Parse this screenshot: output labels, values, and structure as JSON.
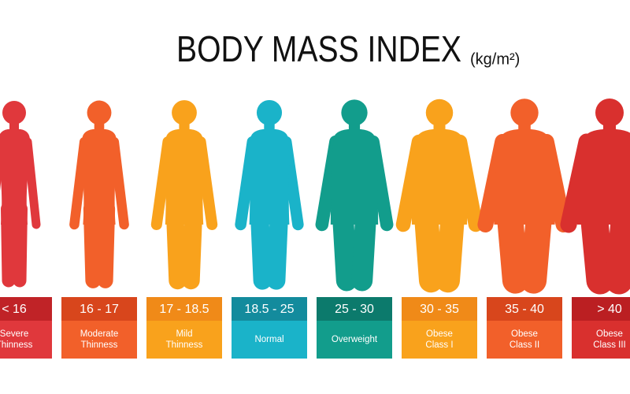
{
  "header": {
    "title": "BODY MASS INDEX",
    "unit": "(kg/m²)"
  },
  "categories": [
    {
      "range": "< 16",
      "lines": [
        "Severe",
        "Thinness"
      ],
      "color": "#e0383c",
      "dark": "#c02327"
    },
    {
      "range": "16 - 17",
      "lines": [
        "Moderate",
        "Thinness"
      ],
      "color": "#f2602a",
      "dark": "#d8461c"
    },
    {
      "range": "17 - 18.5",
      "lines": [
        "Mild",
        "Thinness"
      ],
      "color": "#f9a21c",
      "dark": "#f08a18"
    },
    {
      "range": "18.5 - 25",
      "lines": [
        "Normal"
      ],
      "color": "#1ab3c9",
      "dark": "#138b9d"
    },
    {
      "range": "25 - 30",
      "lines": [
        "Overweight"
      ],
      "color": "#129d8c",
      "dark": "#0c7a6c"
    },
    {
      "range": "30 - 35",
      "lines": [
        "Obese",
        "Class I"
      ],
      "color": "#f9a21c",
      "dark": "#f08a18"
    },
    {
      "range": "35 - 40",
      "lines": [
        "Obese",
        "Class II"
      ],
      "color": "#f2602a",
      "dark": "#d8461c"
    },
    {
      "range": "> 40",
      "lines": [
        "Obese",
        "Class III"
      ],
      "color": "#d9302e",
      "dark": "#bb1f22"
    }
  ]
}
